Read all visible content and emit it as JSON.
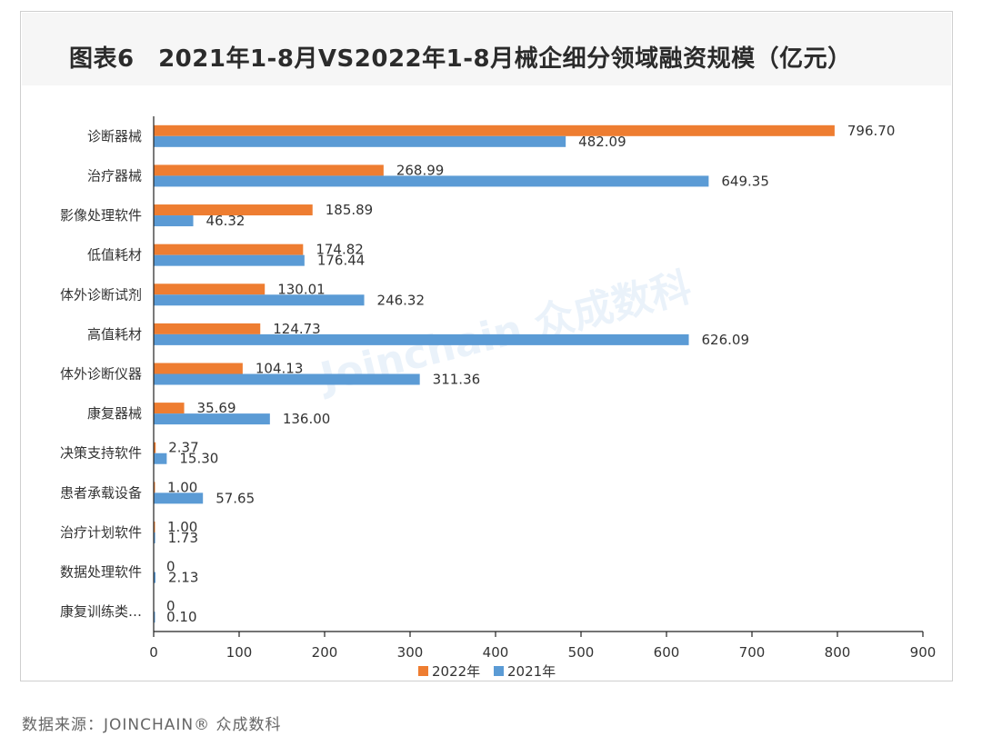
{
  "title": "图表6　2021年1-8月VS2022年1-8月械企细分领域融资规模（亿元）",
  "source": "数据来源：JOINCHAIN® 众成数科",
  "watermark": "Joinchain 众成数科",
  "colors": {
    "2022": "#ee7d31",
    "2021": "#5b9bd5",
    "axis": "#222222"
  },
  "chart_data": {
    "type": "bar",
    "orientation": "horizontal",
    "categories": [
      "诊断器械",
      "治疗器械",
      "影像处理软件",
      "低值耗材",
      "体外诊断试剂",
      "高值耗材",
      "体外诊断仪器",
      "康复器械",
      "决策支持软件",
      "患者承载设备",
      "治疗计划软件",
      "数据处理软件",
      "康复训练类…"
    ],
    "series": [
      {
        "name": "2022年",
        "values": [
          796.7,
          268.99,
          185.89,
          174.82,
          130.01,
          124.73,
          104.13,
          35.69,
          2.37,
          1.0,
          1.0,
          0,
          0
        ],
        "labels": [
          "796.70",
          "268.99",
          "185.89",
          "174.82",
          "130.01",
          "124.73",
          "104.13",
          "35.69",
          "2.37",
          "1.00",
          "1.00",
          "0",
          "0"
        ]
      },
      {
        "name": "2021年",
        "values": [
          482.09,
          649.35,
          46.32,
          176.44,
          246.32,
          626.09,
          311.36,
          136.0,
          15.3,
          57.65,
          1.73,
          2.13,
          0.1
        ],
        "labels": [
          "482.09",
          "649.35",
          "46.32",
          "176.44",
          "246.32",
          "626.09",
          "311.36",
          "136.00",
          "15.30",
          "57.65",
          "1.73",
          "2.13",
          "0.10"
        ]
      }
    ],
    "xlim": [
      0,
      900
    ],
    "xticks": [
      0,
      100,
      200,
      300,
      400,
      500,
      600,
      700,
      800,
      900
    ],
    "grid": false,
    "legend_position": "bottom"
  }
}
